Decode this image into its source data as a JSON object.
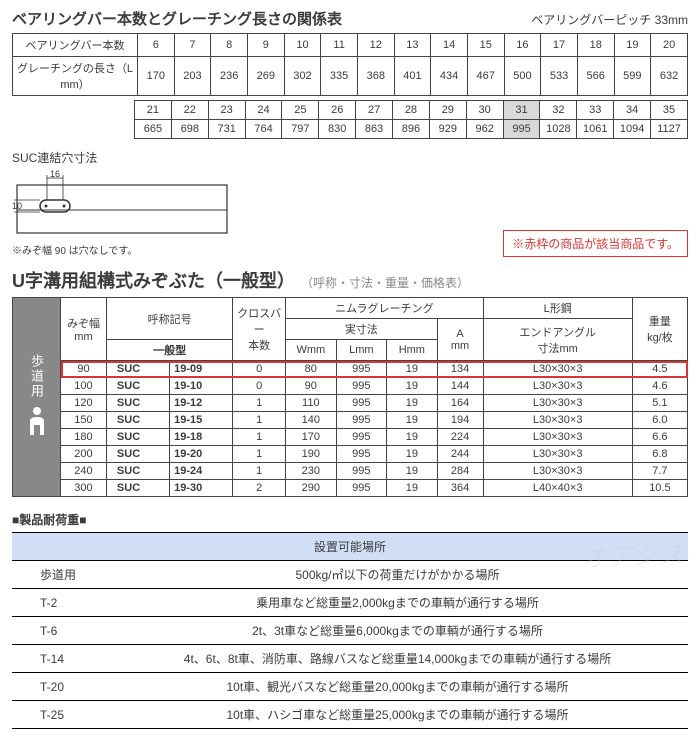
{
  "rel": {
    "title": "ベアリングバー本数とグレーチング長さの関係表",
    "pitch_lbl": "ベアリングバーピッチ",
    "pitch_val": "33mm",
    "row_labels": [
      "ベアリングバー本数",
      "グレーチングの長さ（L mm）"
    ],
    "r1_counts": [
      "6",
      "7",
      "8",
      "9",
      "10",
      "11",
      "12",
      "13",
      "14",
      "15",
      "16",
      "17",
      "18",
      "19",
      "20"
    ],
    "r1_lens": [
      "170",
      "203",
      "236",
      "269",
      "302",
      "335",
      "368",
      "401",
      "434",
      "467",
      "500",
      "533",
      "566",
      "599",
      "632"
    ],
    "r2_counts": [
      "21",
      "22",
      "23",
      "24",
      "25",
      "26",
      "27",
      "28",
      "29",
      "30",
      "31",
      "32",
      "33",
      "34",
      "35"
    ],
    "r2_lens": [
      "665",
      "698",
      "731",
      "764",
      "797",
      "830",
      "863",
      "896",
      "929",
      "962",
      "995",
      "1028",
      "1061",
      "1094",
      "1127"
    ],
    "hl_col": 10
  },
  "suc": {
    "title": "SUC連結穴寸法",
    "wdim": "16",
    "hdim": "10",
    "note": "※みぞ幅 90 は穴なしです。"
  },
  "note_box": "※赤枠の商品が該当商品です。",
  "u": {
    "title": "U字溝用組構式みぞぶた（一般型）",
    "subtitle": "（呼称・寸法・重量・価格表）",
    "side_label": "歩道用",
    "headers": {
      "mizo": "みぞ幅\nmm",
      "kigou": "呼称記号",
      "type": "一般型",
      "cross": "クロスバー\n本数",
      "nimura": "ニムラグレーチング",
      "real": "実寸法",
      "w": "Wmm",
      "l": "Lmm",
      "h": "Hmm",
      "amm": "A\nmm",
      "lsteel": "L形鋼",
      "endang": "エンドアングル\n寸法mm",
      "weight": "重量\nkg/枚"
    },
    "rows": [
      {
        "mizo": "90",
        "pfx": "SUC",
        "code": "19-09",
        "cross": "0",
        "w": "80",
        "l": "995",
        "h": "19",
        "a": "134",
        "angle": "L30×30×3",
        "wt": "4.5",
        "sel": true
      },
      {
        "mizo": "100",
        "pfx": "SUC",
        "code": "19-10",
        "cross": "0",
        "w": "90",
        "l": "995",
        "h": "19",
        "a": "144",
        "angle": "L30×30×3",
        "wt": "4.6"
      },
      {
        "mizo": "120",
        "pfx": "SUC",
        "code": "19-12",
        "cross": "1",
        "w": "110",
        "l": "995",
        "h": "19",
        "a": "164",
        "angle": "L30×30×3",
        "wt": "5.1"
      },
      {
        "mizo": "150",
        "pfx": "SUC",
        "code": "19-15",
        "cross": "1",
        "w": "140",
        "l": "995",
        "h": "19",
        "a": "194",
        "angle": "L30×30×3",
        "wt": "6.0"
      },
      {
        "mizo": "180",
        "pfx": "SUC",
        "code": "19-18",
        "cross": "1",
        "w": "170",
        "l": "995",
        "h": "19",
        "a": "224",
        "angle": "L30×30×3",
        "wt": "6.6"
      },
      {
        "mizo": "200",
        "pfx": "SUC",
        "code": "19-20",
        "cross": "1",
        "w": "190",
        "l": "995",
        "h": "19",
        "a": "244",
        "angle": "L30×30×3",
        "wt": "6.8"
      },
      {
        "mizo": "240",
        "pfx": "SUC",
        "code": "19-24",
        "cross": "1",
        "w": "230",
        "l": "995",
        "h": "19",
        "a": "284",
        "angle": "L30×30×3",
        "wt": "7.7"
      },
      {
        "mizo": "300",
        "pfx": "SUC",
        "code": "19-30",
        "cross": "2",
        "w": "290",
        "l": "995",
        "h": "19",
        "a": "364",
        "angle": "L40×40×3",
        "wt": "10.5"
      }
    ]
  },
  "lc": {
    "title": "■製品耐荷重■",
    "hdr": "設置可能場所",
    "rows": [
      {
        "l": "歩道用",
        "r": "500kg/㎡以下の荷重だけがかかる場所"
      },
      {
        "l": "T-2",
        "r": "乗用車など総重量2,000kgまでの車輌が通行する場所"
      },
      {
        "l": "T-6",
        "r": "2t、3t車など総重量6,000kgまでの車輌が通行する場所"
      },
      {
        "l": "T-14",
        "r": "4t、6t、8t車、消防車、路線バスなど総重量14,000kgまでの車輌が通行する場所"
      },
      {
        "l": "T-20",
        "r": "10t車、観光バスなど総重量20,000kgまでの車輌が通行する場所"
      },
      {
        "l": "T-25",
        "r": "10t車、ハシゴ車など総重量25,000kgまでの車輌が通行する場所"
      }
    ]
  },
  "wm": {
    "top": "MALDEPO.jp",
    "main": "オアシス"
  }
}
